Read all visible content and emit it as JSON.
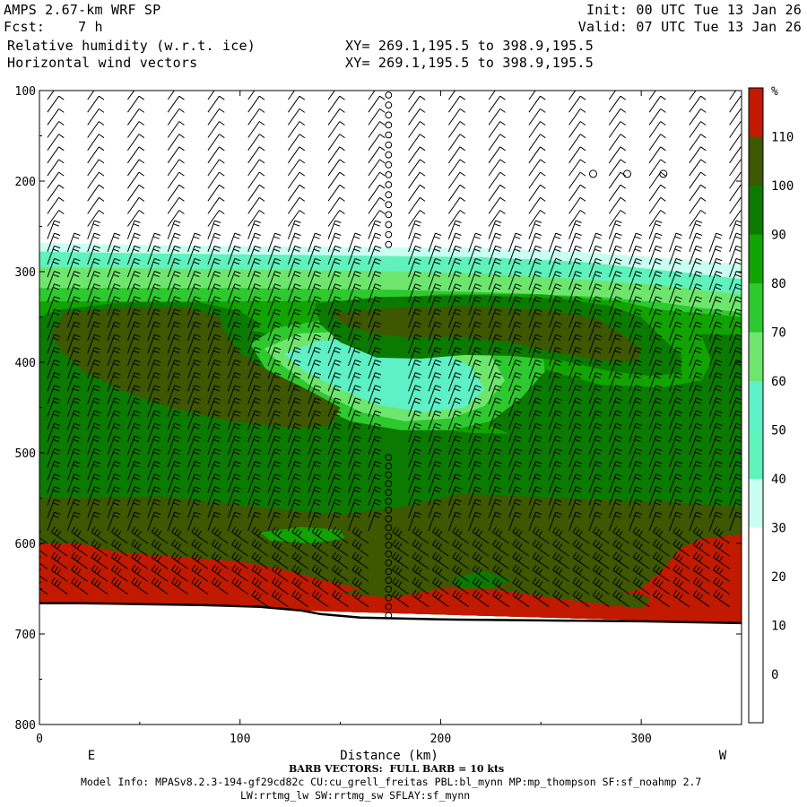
{
  "header": {
    "model": "AMPS 2.67-km WRF SP",
    "fcst": "Fcst:    7 h",
    "field1": "Relative humidity (w.r.t. ice)",
    "field2": "Horizontal wind vectors",
    "xy1": "XY= 269.1,195.5 to 398.9,195.5",
    "xy2": "XY= 269.1,195.5 to 398.9,195.5",
    "init": "Init: 00 UTC Tue 13 Jan 26",
    "valid": "Valid: 07 UTC Tue 13 Jan 26"
  },
  "footer": {
    "barb_note": "BARB VECTORS:  FULL BARB = 10 kts",
    "model_info": "Model Info: MPASv8.2.3-194-gf29cd82c CU:cu_grell_freitas PBL:bl_mynn MP:mp_thompson SF:sf_noahmp 2.7",
    "model_info2": "LW:rrtmg_lw SW:rrtmg_sw SFLAY:sf_mynn"
  },
  "chart_data": {
    "type": "heatmap",
    "xlabel": "Distance (km)",
    "ylabel": "",
    "xlim": [
      0,
      350
    ],
    "ylim": [
      800,
      100
    ],
    "x_ticks": [
      0,
      100,
      200,
      300
    ],
    "y_ticks": [
      100,
      200,
      300,
      400,
      500,
      600,
      700,
      800
    ],
    "left_label": "E",
    "right_label": "W",
    "colorbar": {
      "unit": "%",
      "ticks": [
        110,
        100,
        90,
        80,
        70,
        60,
        50,
        40,
        30,
        20,
        10,
        0
      ],
      "bands": [
        {
          "min": 110,
          "color": "#c21a00"
        },
        {
          "min": 100,
          "color": "#3d5800"
        },
        {
          "min": 90,
          "color": "#0b7a00"
        },
        {
          "min": 80,
          "color": "#11a300"
        },
        {
          "min": 70,
          "color": "#2ec92e"
        },
        {
          "min": 60,
          "color": "#6ee66e"
        },
        {
          "min": 50,
          "color": "#5ef0c6"
        },
        {
          "min": 40,
          "color": "#5ff2bc"
        },
        {
          "min": 30,
          "color": "#c8fff0"
        },
        {
          "min": -10,
          "color": "#ffffff"
        }
      ]
    },
    "terrain": [
      [
        0,
        666
      ],
      [
        20,
        666
      ],
      [
        50,
        667
      ],
      [
        80,
        668
      ],
      [
        110,
        670
      ],
      [
        130,
        674
      ],
      [
        140,
        678
      ],
      [
        160,
        682
      ],
      [
        200,
        684
      ],
      [
        250,
        685
      ],
      [
        300,
        686
      ],
      [
        350,
        688
      ]
    ],
    "calm_column_x": 174
  }
}
